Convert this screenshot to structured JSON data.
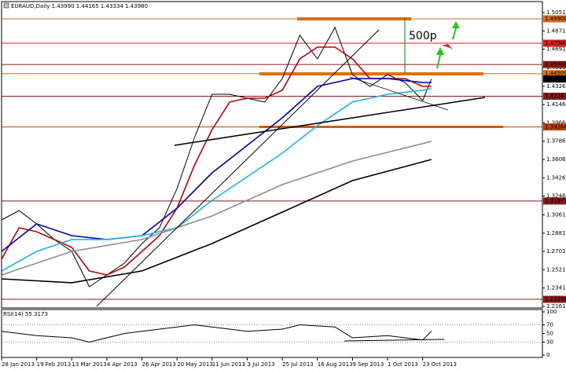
{
  "chart_data": [
    {
      "type": "line",
      "title": "EURAUD,Daily 1.43990 1.44165 1.43334 1.43980",
      "annotation": "500p",
      "xlim": [
        0,
        246.6
      ],
      "xticks": [
        {
          "value": 0,
          "label": "28 Jan 2013"
        },
        {
          "value": 16,
          "label": "19 Feb 2013"
        },
        {
          "value": 32,
          "label": "13 Mar 2013"
        },
        {
          "value": 48,
          "label": "4 Apr 2013"
        },
        {
          "value": 64,
          "label": "26 Apr 2013"
        },
        {
          "value": 80,
          "label": "20 May 2013"
        },
        {
          "value": 96,
          "label": "11 Jun 2013"
        },
        {
          "value": 112,
          "label": "3 Jul 2013"
        },
        {
          "value": 128,
          "label": "25 Jul 2013"
        },
        {
          "value": 144,
          "label": "16 Aug 2013"
        },
        {
          "value": 160,
          "label": "9 Sep 2013"
        },
        {
          "value": 176,
          "label": "1 Oct 2013"
        },
        {
          "value": 192,
          "label": "23 Oct 2013"
        }
      ],
      "ylim": [
        1.2145,
        1.516
      ],
      "yticks": [
        {
          "value": 1.5051,
          "label": "1.50510"
        },
        {
          "value": 1.4871,
          "label": "1.48710"
        },
        {
          "value": 1.4691,
          "label": "1.46910"
        },
        {
          "value": 1.4511,
          "label": "1.45110"
        },
        {
          "value": 1.4326,
          "label": "1.43260"
        },
        {
          "value": 1.4146,
          "label": "1.41460"
        },
        {
          "value": 1.3966,
          "label": "1.39660"
        },
        {
          "value": 1.3786,
          "label": "1.37860"
        },
        {
          "value": 1.3606,
          "label": "1.36060"
        },
        {
          "value": 1.3426,
          "label": "1.34260"
        },
        {
          "value": 1.3246,
          "label": "1.32460"
        },
        {
          "value": 1.3061,
          "label": "1.30610"
        },
        {
          "value": 1.2881,
          "label": "1.28810"
        },
        {
          "value": 1.2701,
          "label": "1.27010"
        },
        {
          "value": 1.2521,
          "label": "1.25210"
        },
        {
          "value": 1.2341,
          "label": "1.23410"
        },
        {
          "value": 1.2161,
          "label": "1.21610"
        }
      ],
      "grid": false,
      "levels": [
        {
          "value": 1.499,
          "label": "1.49900",
          "color": "#d2691e"
        },
        {
          "value": 1.475,
          "label": "1.47500",
          "color": "#dc1e1e"
        },
        {
          "value": 1.45403,
          "label": "1.45403",
          "color": "#8b1a1a"
        },
        {
          "value": 1.44509,
          "label": "1.44509",
          "color": "#e07000"
        },
        {
          "value": 1.42287,
          "label": "1.42287",
          "color": "#8b1a1a"
        },
        {
          "value": 1.39264,
          "label": "1.39264",
          "color": "#c04000"
        },
        {
          "value": 1.31971,
          "label": "1.31971",
          "color": "#8b1a1a"
        },
        {
          "value": 1.22296,
          "label": "1.22296",
          "color": "#8b1a1a"
        }
      ],
      "last_price": {
        "value": 1.4398,
        "label": "1.43980"
      },
      "series": [
        {
          "color": "#000000",
          "x": [
            0,
            8,
            16,
            24,
            32,
            40,
            48,
            56,
            64,
            72,
            80,
            88,
            96,
            104,
            112,
            120,
            128,
            136,
            144,
            152,
            160,
            168,
            176,
            184,
            192,
            196
          ],
          "values": [
            1.3011,
            1.3104,
            1.2972,
            1.2818,
            1.2702,
            1.2354,
            1.247,
            1.2586,
            1.2779,
            1.2934,
            1.332,
            1.3823,
            1.4248,
            1.4248,
            1.4209,
            1.4171,
            1.4402,
            1.4828,
            1.4596,
            1.4905,
            1.4441,
            1.4325,
            1.4441,
            1.4364,
            1.4186,
            1.4398
          ]
        },
        {
          "color": "#c00000",
          "x": [
            0,
            8,
            16,
            24,
            32,
            40,
            48,
            56,
            64,
            72,
            80,
            88,
            96,
            104,
            112,
            120,
            128,
            136,
            144,
            152,
            160,
            168,
            176,
            184,
            192,
            196
          ],
          "values": [
            1.2625,
            1.2934,
            1.2895,
            1.2818,
            1.2741,
            1.2509,
            1.247,
            1.2547,
            1.2702,
            1.2856,
            1.3127,
            1.3552,
            1.39,
            1.4171,
            1.4209,
            1.4209,
            1.4287,
            1.4596,
            1.4712,
            1.4712,
            1.4596,
            1.4402,
            1.4402,
            1.4402,
            1.4325,
            1.4325
          ]
        },
        {
          "color": "#0000b4",
          "x": [
            0,
            16,
            32,
            48,
            64,
            80,
            96,
            112,
            128,
            144,
            160,
            176,
            192,
            196
          ],
          "values": [
            1.2702,
            1.2972,
            1.2856,
            1.2818,
            1.2856,
            1.3127,
            1.3475,
            1.3745,
            1.4016,
            1.4325,
            1.4402,
            1.4402,
            1.4364,
            1.4364
          ]
        },
        {
          "color": "#1eb4e6",
          "x": [
            0,
            16,
            32,
            48,
            64,
            80,
            96,
            112,
            128,
            144,
            160,
            176,
            192,
            196
          ],
          "values": [
            1.2509,
            1.2702,
            1.2818,
            1.2818,
            1.2856,
            1.2934,
            1.3204,
            1.3436,
            1.3668,
            1.3939,
            1.4171,
            1.4248,
            1.4287,
            1.4303
          ]
        },
        {
          "color": "#8c8c96",
          "x": [
            0,
            32,
            64,
            96,
            128,
            160,
            196
          ],
          "values": [
            1.247,
            1.2702,
            1.2818,
            1.305,
            1.3359,
            1.3591,
            1.3784
          ]
        },
        {
          "color": "#000000",
          "x": [
            0,
            32,
            64,
            96,
            128,
            160,
            196
          ],
          "values": [
            1.2431,
            1.2393,
            1.2509,
            1.2779,
            1.3088,
            1.3398,
            1.3606
          ]
        }
      ]
    },
    {
      "type": "line",
      "title": "RSI(14) 55.3173",
      "xlim": [
        0,
        246.6
      ],
      "ylim": [
        0,
        100
      ],
      "yticks": [
        0,
        30,
        50,
        70,
        100
      ],
      "levels": [
        30,
        70
      ],
      "series": [
        {
          "color": "#000000",
          "x": [
            0,
            16,
            32,
            40,
            56,
            72,
            88,
            96,
            112,
            128,
            136,
            152,
            160,
            176,
            184,
            192,
            196
          ],
          "values": [
            55,
            45,
            40,
            30,
            50,
            60,
            70,
            65,
            55,
            60,
            70,
            65,
            40,
            45,
            40,
            35,
            55.3173
          ]
        }
      ]
    }
  ]
}
